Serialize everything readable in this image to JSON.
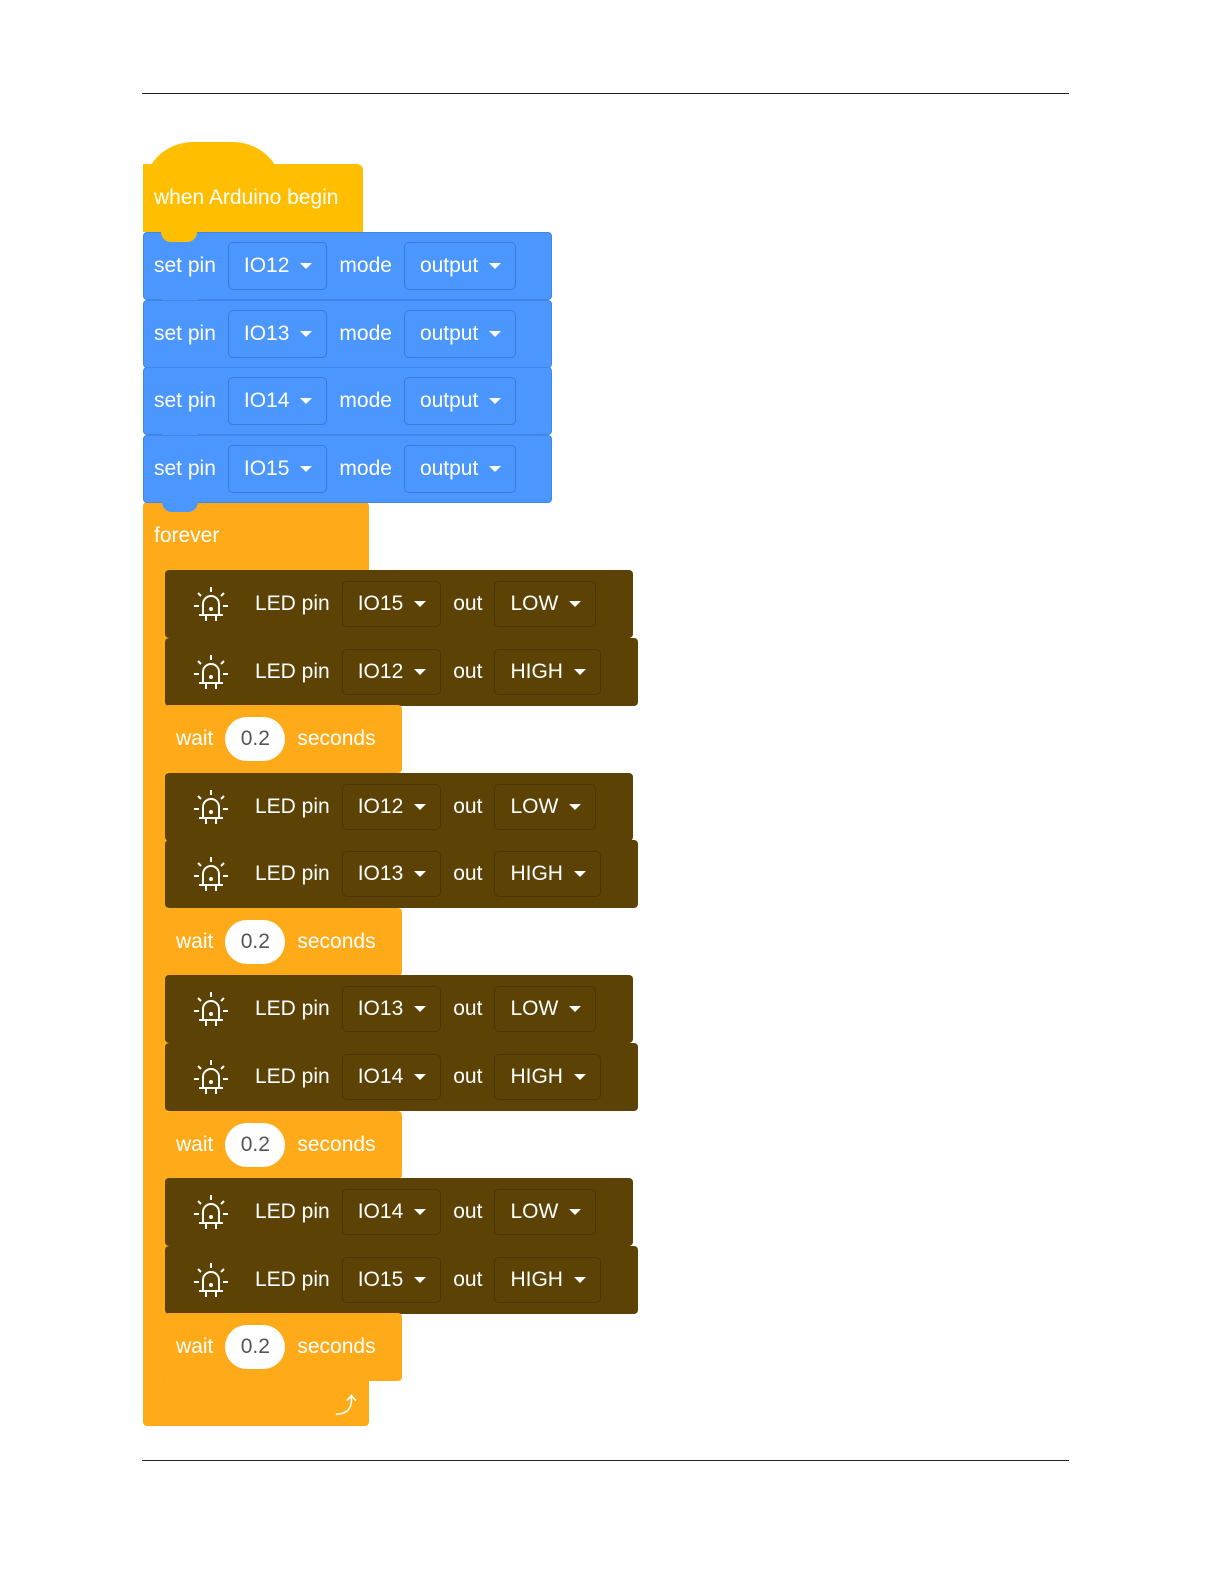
{
  "program": {
    "hat": "when Arduino begin",
    "setup": [
      {
        "label": "set pin",
        "pin": "IO12",
        "mode_label": "mode",
        "mode": "output"
      },
      {
        "label": "set pin",
        "pin": "IO13",
        "mode_label": "mode",
        "mode": "output"
      },
      {
        "label": "set pin",
        "pin": "IO14",
        "mode_label": "mode",
        "mode": "output"
      },
      {
        "label": "set pin",
        "pin": "IO15",
        "mode_label": "mode",
        "mode": "output"
      }
    ],
    "forever": {
      "label": "forever",
      "loop_icon": "loop-arrow-icon"
    },
    "loop": [
      {
        "type": "led",
        "label": "LED pin",
        "pin": "IO15",
        "out_label": "out",
        "value": "LOW"
      },
      {
        "type": "led",
        "label": "LED pin",
        "pin": "IO12",
        "out_label": "out",
        "value": "HIGH"
      },
      {
        "type": "wait",
        "label": "wait",
        "value": "0.2",
        "unit": "seconds"
      },
      {
        "type": "led",
        "label": "LED pin",
        "pin": "IO12",
        "out_label": "out",
        "value": "LOW"
      },
      {
        "type": "led",
        "label": "LED pin",
        "pin": "IO13",
        "out_label": "out",
        "value": "HIGH"
      },
      {
        "type": "wait",
        "label": "wait",
        "value": "0.2",
        "unit": "seconds"
      },
      {
        "type": "led",
        "label": "LED pin",
        "pin": "IO13",
        "out_label": "out",
        "value": "LOW"
      },
      {
        "type": "led",
        "label": "LED pin",
        "pin": "IO14",
        "out_label": "out",
        "value": "HIGH"
      },
      {
        "type": "wait",
        "label": "wait",
        "value": "0.2",
        "unit": "seconds"
      },
      {
        "type": "led",
        "label": "LED pin",
        "pin": "IO14",
        "out_label": "out",
        "value": "LOW"
      },
      {
        "type": "led",
        "label": "LED pin",
        "pin": "IO15",
        "out_label": "out",
        "value": "HIGH"
      },
      {
        "type": "wait",
        "label": "wait",
        "value": "0.2",
        "unit": "seconds"
      }
    ]
  },
  "colors": {
    "hat": "#FFBF00",
    "pin_mode": "#4C97FF",
    "control": "#FFAB19",
    "led": "#5C4305"
  }
}
